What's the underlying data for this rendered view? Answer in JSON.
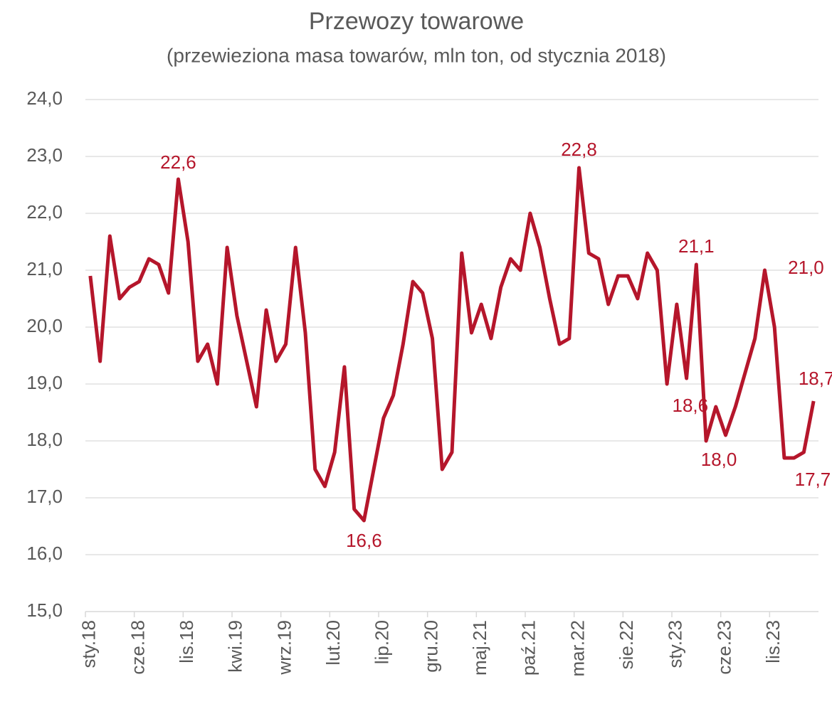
{
  "chart_data": {
    "type": "line",
    "title": "Przewozy towarowe",
    "subtitle": "(przewieziona masa towarów, mln ton, od stycznia 2018)",
    "categories": [
      "sty.18",
      null,
      null,
      null,
      null,
      "cze.18",
      null,
      null,
      null,
      null,
      "lis.18",
      null,
      null,
      null,
      null,
      "kwi.19",
      null,
      null,
      null,
      null,
      "wrz.19",
      null,
      null,
      null,
      null,
      "lut.20",
      null,
      null,
      null,
      null,
      "lip.20",
      null,
      null,
      null,
      null,
      "gru.20",
      null,
      null,
      null,
      null,
      "maj.21",
      null,
      null,
      null,
      null,
      "paź.21",
      null,
      null,
      null,
      null,
      "mar.22",
      null,
      null,
      null,
      null,
      "sie.22",
      null,
      null,
      null,
      null,
      "sty.23",
      null,
      null,
      null,
      null,
      "cze.23",
      null,
      null,
      null,
      null,
      "lis.23",
      null,
      null,
      null,
      null
    ],
    "series": [
      {
        "name": "Przewozy towarowe",
        "color": "#b5162b",
        "values": [
          20.9,
          19.4,
          21.6,
          20.5,
          20.7,
          20.8,
          21.2,
          21.1,
          20.6,
          22.6,
          21.5,
          19.4,
          19.7,
          19.0,
          21.4,
          20.2,
          19.4,
          18.6,
          20.3,
          19.4,
          19.7,
          21.4,
          19.9,
          17.5,
          17.2,
          17.8,
          19.3,
          16.8,
          16.6,
          17.5,
          18.4,
          18.8,
          19.7,
          20.8,
          20.6,
          19.8,
          17.5,
          17.8,
          21.3,
          19.9,
          20.4,
          19.8,
          20.7,
          21.2,
          21.0,
          22.0,
          21.4,
          20.5,
          19.7,
          19.8,
          22.8,
          21.3,
          21.2,
          20.4,
          20.9,
          20.9,
          20.5,
          21.3,
          21.0,
          19.0,
          20.4,
          19.1,
          21.1,
          18.0,
          18.6,
          18.1,
          18.6,
          19.2,
          19.8,
          21.0,
          20.0,
          17.7,
          17.7,
          17.8,
          18.7
        ],
        "value_labels": [
          null,
          null,
          null,
          null,
          null,
          null,
          null,
          null,
          null,
          "22,6",
          null,
          null,
          null,
          null,
          null,
          null,
          null,
          null,
          null,
          null,
          null,
          null,
          null,
          null,
          null,
          null,
          null,
          null,
          "16,6",
          null,
          null,
          null,
          null,
          null,
          null,
          null,
          null,
          null,
          null,
          null,
          null,
          null,
          null,
          null,
          null,
          null,
          null,
          null,
          null,
          null,
          "22,8",
          null,
          null,
          null,
          null,
          null,
          null,
          null,
          null,
          null,
          null,
          null,
          "21,1",
          "18,0",
          "18,6",
          null,
          null,
          null,
          null,
          "21,0",
          null,
          "17,7",
          null,
          null,
          "18,7"
        ]
      }
    ],
    "ylim": [
      15,
      24
    ],
    "yticks": [
      {
        "value": 15,
        "label": "15,0"
      },
      {
        "value": 16,
        "label": "16,0"
      },
      {
        "value": 17,
        "label": "17,0"
      },
      {
        "value": 18,
        "label": "18,0"
      },
      {
        "value": 19,
        "label": "19,0"
      },
      {
        "value": 20,
        "label": "20,0"
      },
      {
        "value": 21,
        "label": "21,0"
      },
      {
        "value": 22,
        "label": "22,0"
      },
      {
        "value": 23,
        "label": "23,0"
      },
      {
        "value": 24,
        "label": "24,0"
      }
    ],
    "grid": true
  }
}
